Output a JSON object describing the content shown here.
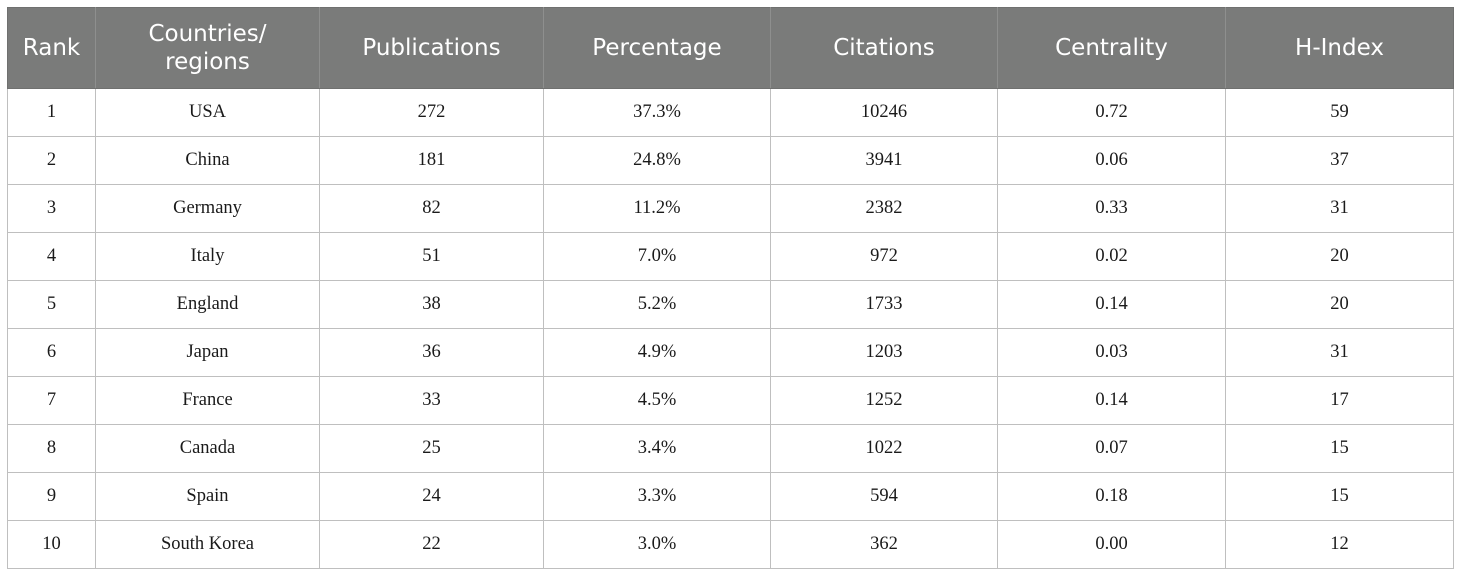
{
  "table": {
    "headers": [
      "Rank",
      "Countries/ regions",
      "Publications",
      "Percentage",
      "Citations",
      "Centrality",
      "H-Index"
    ],
    "rows": [
      [
        "1",
        "USA",
        "272",
        "37.3%",
        "10246",
        "0.72",
        "59"
      ],
      [
        "2",
        "China",
        "181",
        "24.8%",
        "3941",
        "0.06",
        "37"
      ],
      [
        "3",
        "Germany",
        "82",
        "11.2%",
        "2382",
        "0.33",
        "31"
      ],
      [
        "4",
        "Italy",
        "51",
        "7.0%",
        "972",
        "0.02",
        "20"
      ],
      [
        "5",
        "England",
        "38",
        "5.2%",
        "1733",
        "0.14",
        "20"
      ],
      [
        "6",
        "Japan",
        "36",
        "4.9%",
        "1203",
        "0.03",
        "31"
      ],
      [
        "7",
        "France",
        "33",
        "4.5%",
        "1252",
        "0.14",
        "17"
      ],
      [
        "8",
        "Canada",
        "25",
        "3.4%",
        "1022",
        "0.07",
        "15"
      ],
      [
        "9",
        "Spain",
        "24",
        "3.3%",
        "594",
        "0.18",
        "15"
      ],
      [
        "10",
        "South Korea",
        "22",
        "3.0%",
        "362",
        "0.00",
        "12"
      ]
    ]
  }
}
